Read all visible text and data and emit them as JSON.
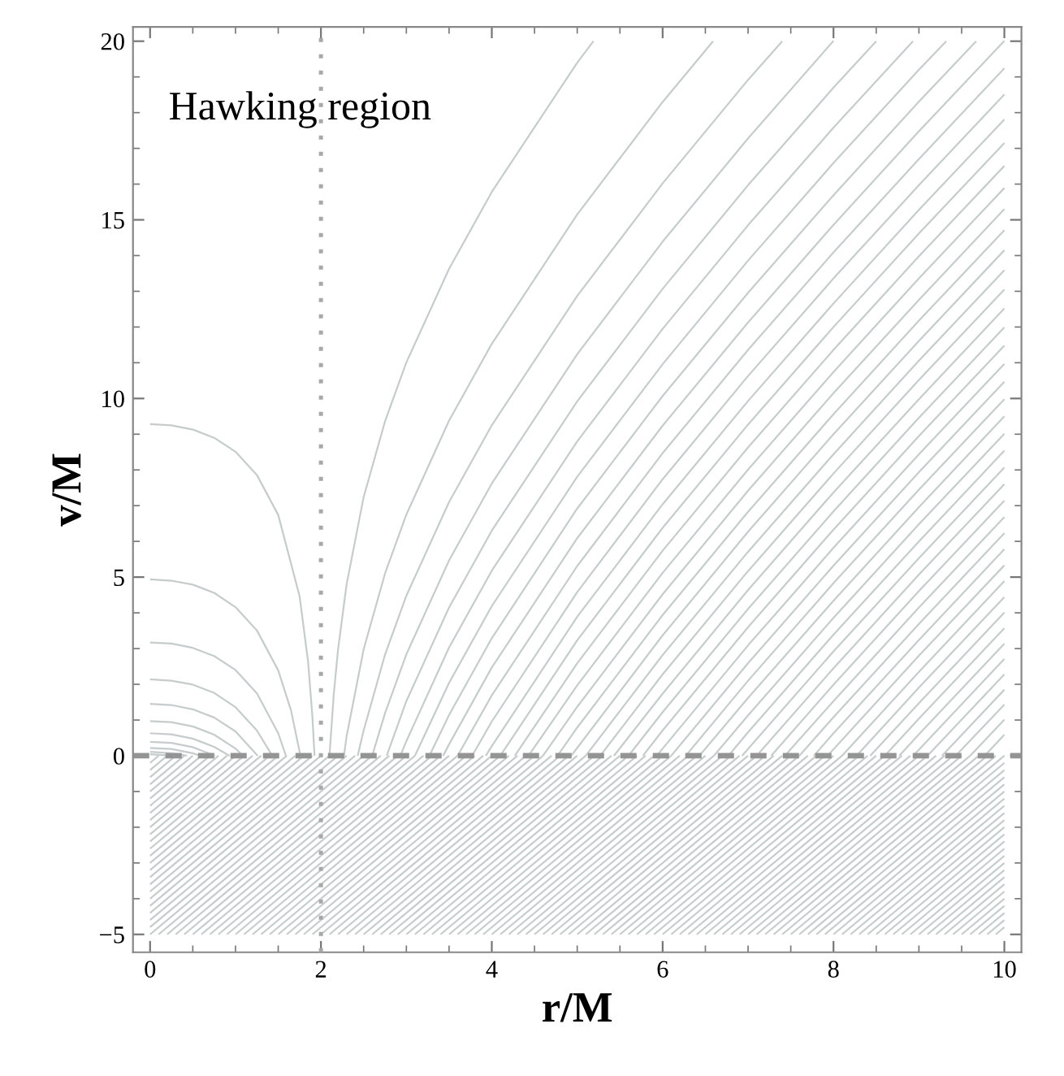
{
  "chart_data": {
    "type": "line",
    "xlabel": "r/M",
    "ylabel": "v/M",
    "annotations": [
      "Hawking region"
    ],
    "xlim": [
      -0.2,
      10.2
    ],
    "ylim": [
      -5.5,
      20.4
    ],
    "xticks": [
      0,
      2,
      4,
      6,
      8,
      10
    ],
    "yticks": [
      {
        "value": -5,
        "label": "−5"
      },
      0,
      5,
      10,
      15,
      20
    ],
    "ref_lines": [
      {
        "axis": "x",
        "value": 2,
        "line_style": "dotted",
        "color": "#a8a8a8"
      },
      {
        "axis": "y",
        "value": 0,
        "line_style": "dashed",
        "color": "#949494"
      }
    ],
    "series": [
      {
        "color": "#c6cccc",
        "x": [
          2.1,
          2.15,
          2.2,
          2.3,
          2.5,
          2.75,
          3,
          3.5,
          4,
          5,
          5.19
        ],
        "values": [
          0,
          1.72,
          2.97,
          4.79,
          7.24,
          9.36,
          11.01,
          13.63,
          15.78,
          19.4,
          20
        ]
      },
      {
        "color": "#c6cccc",
        "x": [
          2.27,
          2.3,
          2.5,
          2.75,
          3,
          3.5,
          4,
          5,
          6,
          6.59
        ],
        "values": [
          0,
          0.54,
          2.98,
          5.1,
          6.75,
          9.38,
          11.53,
          15.15,
          18.3,
          20
        ]
      },
      {
        "color": "#c6cccc",
        "x": [
          2.43,
          2.5,
          2.75,
          3,
          3.5,
          4,
          5,
          6,
          7,
          7.4
        ],
        "values": [
          0,
          0.71,
          2.83,
          4.48,
          7.1,
          9.25,
          12.87,
          16.02,
          18.92,
          20
        ]
      },
      {
        "color": "#c6cccc",
        "x": [
          2.6,
          2.75,
          3,
          3.5,
          4,
          5,
          6,
          7,
          8
        ],
        "values": [
          0,
          1.19,
          2.84,
          5.47,
          7.62,
          11.24,
          14.39,
          17.28,
          20.01
        ]
      },
      {
        "color": "#c6cccc",
        "x": [
          2.77,
          3,
          3.5,
          4,
          5,
          6,
          7,
          8,
          8.5
        ],
        "values": [
          0,
          1.53,
          4.15,
          6.3,
          9.92,
          13.07,
          15.97,
          18.7,
          20
        ]
      },
      {
        "color": "#c6cccc",
        "x": [
          2.93,
          3,
          3.5,
          4,
          5,
          6,
          7,
          8,
          8.93
        ],
        "values": [
          0,
          0.41,
          3.03,
          5.18,
          8.8,
          11.95,
          14.85,
          17.58,
          20
        ]
      },
      {
        "color": "#c6cccc",
        "x": [
          3.1,
          3.5,
          4,
          5,
          6,
          7,
          8,
          9,
          9.32
        ],
        "values": [
          0,
          2.04,
          4.19,
          7.81,
          10.96,
          13.86,
          16.59,
          19.2,
          20
        ]
      },
      {
        "color": "#c6cccc",
        "x": [
          3.27,
          3.5,
          4,
          5,
          6,
          7,
          8,
          9,
          9.67
        ],
        "values": [
          0,
          1.14,
          3.29,
          6.92,
          10.07,
          12.96,
          15.69,
          18.31,
          20
        ]
      },
      {
        "color": "#c6cccc",
        "x": [
          3.43,
          3.5,
          4,
          5,
          6,
          7,
          8,
          9,
          10
        ],
        "values": [
          0,
          0.32,
          2.47,
          6.09,
          9.24,
          12.13,
          14.86,
          17.48,
          20.01
        ]
      },
      {
        "color": "#c6cccc",
        "x": [
          3.6,
          4,
          5,
          6,
          7,
          8,
          9,
          10
        ],
        "values": [
          0,
          1.69,
          5.31,
          8.47,
          11.36,
          14.09,
          16.7,
          19.24
        ]
      },
      {
        "color": "#c6cccc",
        "x": [
          3.77,
          4,
          5,
          6,
          7,
          8,
          9,
          10
        ],
        "values": [
          0,
          0.96,
          4.58,
          7.74,
          10.63,
          13.36,
          15.97,
          18.51
        ]
      },
      {
        "color": "#c6cccc",
        "x": [
          3.93,
          4,
          5,
          6,
          7,
          8,
          9,
          10
        ],
        "values": [
          0,
          0.27,
          3.89,
          7.04,
          9.93,
          12.66,
          15.28,
          17.81
        ]
      },
      {
        "color": "#c6cccc",
        "x": [
          4.1,
          5,
          6,
          7,
          8,
          9,
          10
        ],
        "values": [
          0,
          3.23,
          6.38,
          9.27,
          12,
          14.62,
          17.15
        ]
      },
      {
        "color": "#c6cccc",
        "x": [
          4.27,
          5,
          6,
          7,
          8,
          9,
          10
        ],
        "values": [
          0,
          2.59,
          5.74,
          8.63,
          11.36,
          13.98,
          16.51
        ]
      },
      {
        "color": "#c6cccc",
        "x": [
          4.43,
          5,
          6,
          7,
          8,
          9,
          10
        ],
        "values": [
          0,
          1.97,
          5.12,
          8.01,
          10.74,
          13.36,
          15.89
        ]
      },
      {
        "color": "#c6cccc",
        "x": [
          4.6,
          5,
          6,
          7,
          8,
          9,
          10
        ],
        "values": [
          0,
          1.37,
          4.52,
          7.42,
          10.15,
          12.76,
          15.3
        ]
      },
      {
        "color": "#c6cccc",
        "x": [
          4.77,
          5,
          6,
          7,
          8,
          9,
          10
        ],
        "values": [
          0,
          0.79,
          3.94,
          6.83,
          9.56,
          12.18,
          14.71
        ]
      },
      {
        "color": "#c6cccc",
        "x": [
          4.93,
          5,
          6,
          7,
          8,
          9,
          10
        ],
        "values": [
          0,
          0.22,
          3.37,
          6.27,
          9,
          11.61,
          14.15
        ]
      },
      {
        "color": "#c6cccc",
        "x": [
          5.1,
          6,
          7,
          8,
          9,
          10
        ],
        "values": [
          0,
          2.82,
          5.71,
          8.44,
          11.06,
          13.59
        ]
      },
      {
        "color": "#c6cccc",
        "x": [
          5.27,
          6,
          7,
          8,
          9,
          10
        ],
        "values": [
          0,
          2.28,
          5.17,
          7.9,
          10.52,
          13.05
        ]
      },
      {
        "color": "#c6cccc",
        "x": [
          5.43,
          6,
          7,
          8,
          9,
          10
        ],
        "values": [
          0,
          1.74,
          4.64,
          7.37,
          9.98,
          12.52
        ]
      },
      {
        "color": "#c6cccc",
        "x": [
          5.6,
          6,
          7,
          8,
          9,
          10
        ],
        "values": [
          0,
          1.22,
          4.11,
          6.84,
          9.46,
          11.99
        ]
      },
      {
        "color": "#c6cccc",
        "x": [
          5.77,
          6,
          7,
          8,
          9,
          10
        ],
        "values": [
          0,
          0.71,
          3.6,
          6.33,
          8.95,
          11.48
        ]
      },
      {
        "color": "#c6cccc",
        "x": [
          5.93,
          6,
          7,
          8,
          9,
          10
        ],
        "values": [
          0,
          0.2,
          3.09,
          5.82,
          8.44,
          10.97
        ]
      },
      {
        "color": "#c6cccc",
        "x": [
          6.1,
          7,
          8,
          9,
          10
        ],
        "values": [
          0,
          2.59,
          5.32,
          7.94,
          10.47
        ]
      },
      {
        "color": "#c6cccc",
        "x": [
          6.27,
          7,
          8,
          9,
          10
        ],
        "values": [
          0,
          2.1,
          4.83,
          7.45,
          9.98
        ]
      },
      {
        "color": "#c6cccc",
        "x": [
          6.43,
          7,
          8,
          9,
          10
        ],
        "values": [
          0,
          1.62,
          4.34,
          6.96,
          9.5
        ]
      },
      {
        "color": "#c6cccc",
        "x": [
          6.6,
          7,
          8,
          9,
          10
        ],
        "values": [
          0,
          1.13,
          3.86,
          6.48,
          9.01
        ]
      },
      {
        "color": "#c6cccc",
        "x": [
          6.77,
          7,
          8,
          9,
          10
        ],
        "values": [
          0,
          0.66,
          3.39,
          6,
          8.54
        ]
      },
      {
        "color": "#c6cccc",
        "x": [
          6.93,
          7,
          8,
          9,
          10
        ],
        "values": [
          0,
          0.19,
          2.92,
          5.53,
          8.07
        ]
      },
      {
        "color": "#c6cccc",
        "x": [
          7.1,
          8,
          9,
          10
        ],
        "values": [
          0,
          2.45,
          5.07,
          7.6
        ]
      },
      {
        "color": "#c6cccc",
        "x": [
          7.27,
          8,
          9,
          10
        ],
        "values": [
          0,
          1.99,
          4.61,
          7.14
        ]
      },
      {
        "color": "#c6cccc",
        "x": [
          7.43,
          8,
          9,
          10
        ],
        "values": [
          0,
          1.53,
          4.15,
          6.68
        ]
      },
      {
        "color": "#c6cccc",
        "x": [
          7.6,
          8,
          9,
          10
        ],
        "values": [
          0,
          1.08,
          3.69,
          6.23
        ]
      },
      {
        "color": "#c6cccc",
        "x": [
          7.77,
          8,
          9,
          10
        ],
        "values": [
          0,
          0.63,
          3.24,
          5.78
        ]
      },
      {
        "color": "#c6cccc",
        "x": [
          7.93,
          8,
          9,
          10
        ],
        "values": [
          0,
          0.18,
          2.8,
          5.33
        ]
      },
      {
        "color": "#c6cccc",
        "x": [
          8.1,
          9,
          10
        ],
        "values": [
          0,
          2.35,
          4.89
        ]
      },
      {
        "color": "#c6cccc",
        "x": [
          8.27,
          9,
          10
        ],
        "values": [
          0,
          1.91,
          4.44
        ]
      },
      {
        "color": "#c6cccc",
        "x": [
          8.43,
          9,
          10
        ],
        "values": [
          0,
          1.47,
          4.01
        ]
      },
      {
        "color": "#c6cccc",
        "x": [
          8.6,
          9,
          10
        ],
        "values": [
          0,
          1.04,
          3.57
        ]
      },
      {
        "color": "#c6cccc",
        "x": [
          8.77,
          9,
          10
        ],
        "values": [
          0,
          0.6,
          3.14
        ]
      },
      {
        "color": "#c6cccc",
        "x": [
          8.93,
          9,
          10
        ],
        "values": [
          0,
          0.17,
          2.71
        ]
      },
      {
        "color": "#c6cccc",
        "x": [
          9.1,
          10
        ],
        "values": [
          0,
          2.28
        ]
      },
      {
        "color": "#c6cccc",
        "x": [
          9.27,
          10
        ],
        "values": [
          0,
          1.85
        ]
      },
      {
        "color": "#c6cccc",
        "x": [
          9.43,
          10
        ],
        "values": [
          0,
          1.43
        ]
      },
      {
        "color": "#c6cccc",
        "x": [
          9.6,
          10
        ],
        "values": [
          0,
          1.01
        ]
      },
      {
        "color": "#c6cccc",
        "x": [
          9.77,
          10
        ],
        "values": [
          0,
          0.59
        ]
      },
      {
        "color": "#c6cccc",
        "x": [
          0,
          0.25,
          0.5,
          0.75,
          1,
          1.25,
          1.5,
          1.75,
          1.85,
          1.9,
          1.925
        ],
        "values": [
          9.28,
          9.25,
          9.13,
          8.9,
          8.51,
          7.86,
          6.74,
          4.47,
          2.62,
          1.1,
          0
        ]
      },
      {
        "color": "#c6cccc",
        "x": [
          0,
          0.25,
          0.5,
          0.75,
          1,
          1.25,
          1.5,
          1.65,
          1.76
        ],
        "values": [
          4.94,
          4.9,
          4.79,
          4.56,
          4.16,
          3.51,
          2.39,
          1.27,
          0
        ]
      },
      {
        "color": "#c6cccc",
        "x": [
          0,
          0.25,
          0.5,
          0.75,
          1,
          1.25,
          1.5,
          1.59
        ],
        "values": [
          3.17,
          3.14,
          3.02,
          2.79,
          2.4,
          1.75,
          0.63,
          0
        ]
      },
      {
        "color": "#c6cccc",
        "x": [
          0,
          0.25,
          0.5,
          0.75,
          1,
          1.25,
          1.43
        ],
        "values": [
          2.14,
          2.1,
          1.99,
          1.76,
          1.36,
          0.71,
          0
        ]
      },
      {
        "color": "#c6cccc",
        "x": [
          0,
          0.25,
          0.5,
          0.75,
          1,
          1.26
        ],
        "values": [
          1.45,
          1.42,
          1.3,
          1.07,
          0.68,
          0
        ]
      },
      {
        "color": "#c6cccc",
        "x": [
          0,
          0.25,
          0.5,
          0.75,
          1,
          1.09
        ],
        "values": [
          0.97,
          0.94,
          0.82,
          0.59,
          0.2,
          0
        ]
      },
      {
        "color": "#c6cccc",
        "x": [
          0,
          0.25,
          0.5,
          0.75,
          0.93
        ],
        "values": [
          0.63,
          0.6,
          0.48,
          0.25,
          0
        ]
      },
      {
        "color": "#c6cccc",
        "x": [
          0,
          0.25,
          0.5,
          0.76
        ],
        "values": [
          0.39,
          0.36,
          0.24,
          0
        ]
      },
      {
        "color": "#c6cccc",
        "x": [
          0,
          0.25,
          0.5,
          0.59
        ],
        "values": [
          0.22,
          0.19,
          0.07,
          0
        ]
      },
      {
        "color": "#c6cccc",
        "x": [
          0,
          0.25,
          0.43
        ],
        "values": [
          0.11,
          0.07,
          0
        ]
      },
      {
        "color": "#c6cccc",
        "x": [
          0,
          0.26
        ],
        "values": [
          0.04,
          0
        ]
      },
      {
        "color": "#c6cccc",
        "x": [
          0,
          0.1
        ],
        "values": [
          -0.2,
          0
        ]
      },
      {
        "color": "#c6cccc",
        "x": [
          0,
          0.2
        ],
        "values": [
          -0.4,
          0
        ]
      },
      {
        "color": "#c6cccc",
        "x": [
          0,
          0.3
        ],
        "values": [
          -0.6,
          0
        ]
      },
      {
        "color": "#c6cccc",
        "x": [
          0,
          0.4
        ],
        "values": [
          -0.8,
          0
        ]
      },
      {
        "color": "#c6cccc",
        "x": [
          0,
          0.5
        ],
        "values": [
          -1,
          0
        ]
      },
      {
        "color": "#c6cccc",
        "x": [
          0,
          0.6
        ],
        "values": [
          -1.2,
          0
        ]
      },
      {
        "color": "#c6cccc",
        "x": [
          0,
          0.7
        ],
        "values": [
          -1.4,
          0
        ]
      },
      {
        "color": "#c6cccc",
        "x": [
          0,
          0.8
        ],
        "values": [
          -1.6,
          0
        ]
      },
      {
        "color": "#c6cccc",
        "x": [
          0,
          0.9
        ],
        "values": [
          -1.8,
          0
        ]
      },
      {
        "color": "#c6cccc",
        "x": [
          0,
          1
        ],
        "values": [
          -2,
          0
        ]
      },
      {
        "color": "#c6cccc",
        "x": [
          0,
          1.1
        ],
        "values": [
          -2.2,
          0
        ]
      },
      {
        "color": "#c6cccc",
        "x": [
          0,
          1.2
        ],
        "values": [
          -2.4,
          0
        ]
      },
      {
        "color": "#c6cccc",
        "x": [
          0,
          1.3
        ],
        "values": [
          -2.6,
          0
        ]
      },
      {
        "color": "#c6cccc",
        "x": [
          0,
          1.4
        ],
        "values": [
          -2.8,
          0
        ]
      },
      {
        "color": "#c6cccc",
        "x": [
          0,
          1.5
        ],
        "values": [
          -3,
          0
        ]
      },
      {
        "color": "#c6cccc",
        "x": [
          0,
          1.6
        ],
        "values": [
          -3.2,
          0
        ]
      },
      {
        "color": "#c6cccc",
        "x": [
          0,
          1.7
        ],
        "values": [
          -3.4,
          0
        ]
      },
      {
        "color": "#c6cccc",
        "x": [
          0,
          1.8
        ],
        "values": [
          -3.6,
          0
        ]
      },
      {
        "color": "#c6cccc",
        "x": [
          0,
          1.9
        ],
        "values": [
          -3.8,
          0
        ]
      },
      {
        "color": "#c6cccc",
        "x": [
          0,
          2
        ],
        "values": [
          -4,
          0
        ]
      },
      {
        "color": "#c6cccc",
        "x": [
          0,
          2.1
        ],
        "values": [
          -4.2,
          0
        ]
      },
      {
        "color": "#c6cccc",
        "x": [
          0,
          2.2
        ],
        "values": [
          -4.4,
          0
        ]
      },
      {
        "color": "#c6cccc",
        "x": [
          0,
          2.3
        ],
        "values": [
          -4.6,
          0
        ]
      },
      {
        "color": "#c6cccc",
        "x": [
          0,
          2.4
        ],
        "values": [
          -4.8,
          0
        ]
      },
      {
        "color": "#c6cccc",
        "x": [
          0,
          2.5
        ],
        "values": [
          -5,
          0
        ]
      },
      {
        "color": "#c6cccc",
        "x": [
          0.1,
          2.6
        ],
        "values": [
          -5,
          0
        ]
      },
      {
        "color": "#c6cccc",
        "x": [
          0.2,
          2.7
        ],
        "values": [
          -5,
          0
        ]
      },
      {
        "color": "#c6cccc",
        "x": [
          0.3,
          2.8
        ],
        "values": [
          -5,
          0
        ]
      },
      {
        "color": "#c6cccc",
        "x": [
          0.4,
          2.9
        ],
        "values": [
          -5,
          0
        ]
      },
      {
        "color": "#c6cccc",
        "x": [
          0.5,
          3
        ],
        "values": [
          -5,
          0
        ]
      },
      {
        "color": "#c6cccc",
        "x": [
          0.6,
          3.1
        ],
        "values": [
          -5,
          0
        ]
      },
      {
        "color": "#c6cccc",
        "x": [
          0.7,
          3.2
        ],
        "values": [
          -5,
          0
        ]
      },
      {
        "color": "#c6cccc",
        "x": [
          0.8,
          3.3
        ],
        "values": [
          -5,
          0
        ]
      },
      {
        "color": "#c6cccc",
        "x": [
          0.9,
          3.4
        ],
        "values": [
          -5,
          0
        ]
      },
      {
        "color": "#c6cccc",
        "x": [
          1,
          3.5
        ],
        "values": [
          -5,
          0
        ]
      },
      {
        "color": "#c6cccc",
        "x": [
          1.1,
          3.6
        ],
        "values": [
          -5,
          0
        ]
      },
      {
        "color": "#c6cccc",
        "x": [
          1.2,
          3.7
        ],
        "values": [
          -5,
          0
        ]
      },
      {
        "color": "#c6cccc",
        "x": [
          1.3,
          3.8
        ],
        "values": [
          -5,
          0
        ]
      },
      {
        "color": "#c6cccc",
        "x": [
          1.4,
          3.9
        ],
        "values": [
          -5,
          0
        ]
      },
      {
        "color": "#c6cccc",
        "x": [
          1.5,
          4
        ],
        "values": [
          -5,
          0
        ]
      },
      {
        "color": "#c6cccc",
        "x": [
          1.6,
          4.1
        ],
        "values": [
          -5,
          0
        ]
      },
      {
        "color": "#c6cccc",
        "x": [
          1.7,
          4.2
        ],
        "values": [
          -5,
          0
        ]
      },
      {
        "color": "#c6cccc",
        "x": [
          1.8,
          4.3
        ],
        "values": [
          -5,
          0
        ]
      },
      {
        "color": "#c6cccc",
        "x": [
          1.9,
          4.4
        ],
        "values": [
          -5,
          0
        ]
      },
      {
        "color": "#c6cccc",
        "x": [
          2,
          4.5
        ],
        "values": [
          -5,
          0
        ]
      },
      {
        "color": "#c6cccc",
        "x": [
          2.1,
          4.6
        ],
        "values": [
          -5,
          0
        ]
      },
      {
        "color": "#c6cccc",
        "x": [
          2.2,
          4.7
        ],
        "values": [
          -5,
          0
        ]
      },
      {
        "color": "#c6cccc",
        "x": [
          2.3,
          4.8
        ],
        "values": [
          -5,
          0
        ]
      },
      {
        "color": "#c6cccc",
        "x": [
          2.4,
          4.9
        ],
        "values": [
          -5,
          0
        ]
      },
      {
        "color": "#c6cccc",
        "x": [
          2.5,
          5
        ],
        "values": [
          -5,
          0
        ]
      },
      {
        "color": "#c6cccc",
        "x": [
          2.6,
          5.1
        ],
        "values": [
          -5,
          0
        ]
      },
      {
        "color": "#c6cccc",
        "x": [
          2.7,
          5.2
        ],
        "values": [
          -5,
          0
        ]
      },
      {
        "color": "#c6cccc",
        "x": [
          2.8,
          5.3
        ],
        "values": [
          -5,
          0
        ]
      },
      {
        "color": "#c6cccc",
        "x": [
          2.9,
          5.4
        ],
        "values": [
          -5,
          0
        ]
      },
      {
        "color": "#c6cccc",
        "x": [
          3,
          5.5
        ],
        "values": [
          -5,
          0
        ]
      },
      {
        "color": "#c6cccc",
        "x": [
          3.1,
          5.6
        ],
        "values": [
          -5,
          0
        ]
      },
      {
        "color": "#c6cccc",
        "x": [
          3.2,
          5.7
        ],
        "values": [
          -5,
          0
        ]
      },
      {
        "color": "#c6cccc",
        "x": [
          3.3,
          5.8
        ],
        "values": [
          -5,
          0
        ]
      },
      {
        "color": "#c6cccc",
        "x": [
          3.4,
          5.9
        ],
        "values": [
          -5,
          0
        ]
      },
      {
        "color": "#c6cccc",
        "x": [
          3.5,
          6
        ],
        "values": [
          -5,
          0
        ]
      },
      {
        "color": "#c6cccc",
        "x": [
          3.6,
          6.1
        ],
        "values": [
          -5,
          0
        ]
      },
      {
        "color": "#c6cccc",
        "x": [
          3.7,
          6.2
        ],
        "values": [
          -5,
          0
        ]
      },
      {
        "color": "#c6cccc",
        "x": [
          3.8,
          6.3
        ],
        "values": [
          -5,
          0
        ]
      },
      {
        "color": "#c6cccc",
        "x": [
          3.9,
          6.4
        ],
        "values": [
          -5,
          0
        ]
      },
      {
        "color": "#c6cccc",
        "x": [
          4,
          6.5
        ],
        "values": [
          -5,
          0
        ]
      },
      {
        "color": "#c6cccc",
        "x": [
          4.1,
          6.6
        ],
        "values": [
          -5,
          0
        ]
      },
      {
        "color": "#c6cccc",
        "x": [
          4.2,
          6.7
        ],
        "values": [
          -5,
          0
        ]
      },
      {
        "color": "#c6cccc",
        "x": [
          4.3,
          6.8
        ],
        "values": [
          -5,
          0
        ]
      },
      {
        "color": "#c6cccc",
        "x": [
          4.4,
          6.9
        ],
        "values": [
          -5,
          0
        ]
      },
      {
        "color": "#c6cccc",
        "x": [
          4.5,
          7
        ],
        "values": [
          -5,
          0
        ]
      },
      {
        "color": "#c6cccc",
        "x": [
          4.6,
          7.1
        ],
        "values": [
          -5,
          0
        ]
      },
      {
        "color": "#c6cccc",
        "x": [
          4.7,
          7.2
        ],
        "values": [
          -5,
          0
        ]
      },
      {
        "color": "#c6cccc",
        "x": [
          4.8,
          7.3
        ],
        "values": [
          -5,
          0
        ]
      },
      {
        "color": "#c6cccc",
        "x": [
          4.9,
          7.4
        ],
        "values": [
          -5,
          0
        ]
      },
      {
        "color": "#c6cccc",
        "x": [
          5,
          7.5
        ],
        "values": [
          -5,
          0
        ]
      },
      {
        "color": "#c6cccc",
        "x": [
          5.1,
          7.6
        ],
        "values": [
          -5,
          0
        ]
      },
      {
        "color": "#c6cccc",
        "x": [
          5.2,
          7.7
        ],
        "values": [
          -5,
          0
        ]
      },
      {
        "color": "#c6cccc",
        "x": [
          5.3,
          7.8
        ],
        "values": [
          -5,
          0
        ]
      },
      {
        "color": "#c6cccc",
        "x": [
          5.4,
          7.9
        ],
        "values": [
          -5,
          0
        ]
      },
      {
        "color": "#c6cccc",
        "x": [
          5.5,
          8
        ],
        "values": [
          -5,
          0
        ]
      },
      {
        "color": "#c6cccc",
        "x": [
          5.6,
          8.1
        ],
        "values": [
          -5,
          0
        ]
      },
      {
        "color": "#c6cccc",
        "x": [
          5.7,
          8.2
        ],
        "values": [
          -5,
          0
        ]
      },
      {
        "color": "#c6cccc",
        "x": [
          5.8,
          8.3
        ],
        "values": [
          -5,
          0
        ]
      },
      {
        "color": "#c6cccc",
        "x": [
          5.9,
          8.4
        ],
        "values": [
          -5,
          0
        ]
      },
      {
        "color": "#c6cccc",
        "x": [
          6,
          8.5
        ],
        "values": [
          -5,
          0
        ]
      },
      {
        "color": "#c6cccc",
        "x": [
          6.1,
          8.6
        ],
        "values": [
          -5,
          0
        ]
      },
      {
        "color": "#c6cccc",
        "x": [
          6.2,
          8.7
        ],
        "values": [
          -5,
          0
        ]
      },
      {
        "color": "#c6cccc",
        "x": [
          6.3,
          8.8
        ],
        "values": [
          -5,
          0
        ]
      },
      {
        "color": "#c6cccc",
        "x": [
          6.4,
          8.9
        ],
        "values": [
          -5,
          0
        ]
      },
      {
        "color": "#c6cccc",
        "x": [
          6.5,
          9
        ],
        "values": [
          -5,
          0
        ]
      },
      {
        "color": "#c6cccc",
        "x": [
          6.6,
          9.1
        ],
        "values": [
          -5,
          0
        ]
      },
      {
        "color": "#c6cccc",
        "x": [
          6.7,
          9.2
        ],
        "values": [
          -5,
          0
        ]
      },
      {
        "color": "#c6cccc",
        "x": [
          6.8,
          9.3
        ],
        "values": [
          -5,
          0
        ]
      },
      {
        "color": "#c6cccc",
        "x": [
          6.9,
          9.4
        ],
        "values": [
          -5,
          0
        ]
      },
      {
        "color": "#c6cccc",
        "x": [
          7,
          9.5
        ],
        "values": [
          -5,
          0
        ]
      },
      {
        "color": "#c6cccc",
        "x": [
          7.1,
          9.6
        ],
        "values": [
          -5,
          0
        ]
      },
      {
        "color": "#c6cccc",
        "x": [
          7.2,
          9.7
        ],
        "values": [
          -5,
          0
        ]
      },
      {
        "color": "#c6cccc",
        "x": [
          7.3,
          9.8
        ],
        "values": [
          -5,
          0
        ]
      },
      {
        "color": "#c6cccc",
        "x": [
          7.4,
          9.9
        ],
        "values": [
          -5,
          0
        ]
      },
      {
        "color": "#c6cccc",
        "x": [
          7.5,
          10
        ],
        "values": [
          -5,
          0
        ]
      },
      {
        "color": "#c6cccc",
        "x": [
          7.6,
          10
        ],
        "values": [
          -5,
          -0.2
        ]
      },
      {
        "color": "#c6cccc",
        "x": [
          7.7,
          10
        ],
        "values": [
          -5,
          -0.4
        ]
      },
      {
        "color": "#c6cccc",
        "x": [
          7.8,
          10
        ],
        "values": [
          -5,
          -0.6
        ]
      },
      {
        "color": "#c6cccc",
        "x": [
          7.9,
          10
        ],
        "values": [
          -5,
          -0.8
        ]
      },
      {
        "color": "#c6cccc",
        "x": [
          8,
          10
        ],
        "values": [
          -5,
          -1
        ]
      },
      {
        "color": "#c6cccc",
        "x": [
          8.1,
          10
        ],
        "values": [
          -5,
          -1.2
        ]
      },
      {
        "color": "#c6cccc",
        "x": [
          8.2,
          10
        ],
        "values": [
          -5,
          -1.4
        ]
      },
      {
        "color": "#c6cccc",
        "x": [
          8.3,
          10
        ],
        "values": [
          -5,
          -1.6
        ]
      },
      {
        "color": "#c6cccc",
        "x": [
          8.4,
          10
        ],
        "values": [
          -5,
          -1.8
        ]
      },
      {
        "color": "#c6cccc",
        "x": [
          8.5,
          10
        ],
        "values": [
          -5,
          -2
        ]
      },
      {
        "color": "#c6cccc",
        "x": [
          8.6,
          10
        ],
        "values": [
          -5,
          -2.2
        ]
      },
      {
        "color": "#c6cccc",
        "x": [
          8.7,
          10
        ],
        "values": [
          -5,
          -2.4
        ]
      },
      {
        "color": "#c6cccc",
        "x": [
          8.8,
          10
        ],
        "values": [
          -5,
          -2.6
        ]
      },
      {
        "color": "#c6cccc",
        "x": [
          8.9,
          10
        ],
        "values": [
          -5,
          -2.8
        ]
      },
      {
        "color": "#c6cccc",
        "x": [
          9,
          10
        ],
        "values": [
          -5,
          -3
        ]
      },
      {
        "color": "#c6cccc",
        "x": [
          9.1,
          10
        ],
        "values": [
          -5,
          -3.2
        ]
      },
      {
        "color": "#c6cccc",
        "x": [
          9.2,
          10
        ],
        "values": [
          -5,
          -3.4
        ]
      },
      {
        "color": "#c6cccc",
        "x": [
          9.3,
          10
        ],
        "values": [
          -5,
          -3.6
        ]
      },
      {
        "color": "#c6cccc",
        "x": [
          9.4,
          10
        ],
        "values": [
          -5,
          -3.8
        ]
      },
      {
        "color": "#c6cccc",
        "x": [
          9.5,
          10
        ],
        "values": [
          -5,
          -4
        ]
      },
      {
        "color": "#c6cccc",
        "x": [
          9.6,
          10
        ],
        "values": [
          -5,
          -4.2
        ]
      },
      {
        "color": "#c6cccc",
        "x": [
          9.7,
          10
        ],
        "values": [
          -5,
          -4.4
        ]
      },
      {
        "color": "#c6cccc",
        "x": [
          9.8,
          10
        ],
        "values": [
          -5,
          -4.6
        ]
      },
      {
        "color": "#c6cccc",
        "x": [
          9.9,
          10
        ],
        "values": [
          -5,
          -4.8
        ]
      }
    ]
  }
}
